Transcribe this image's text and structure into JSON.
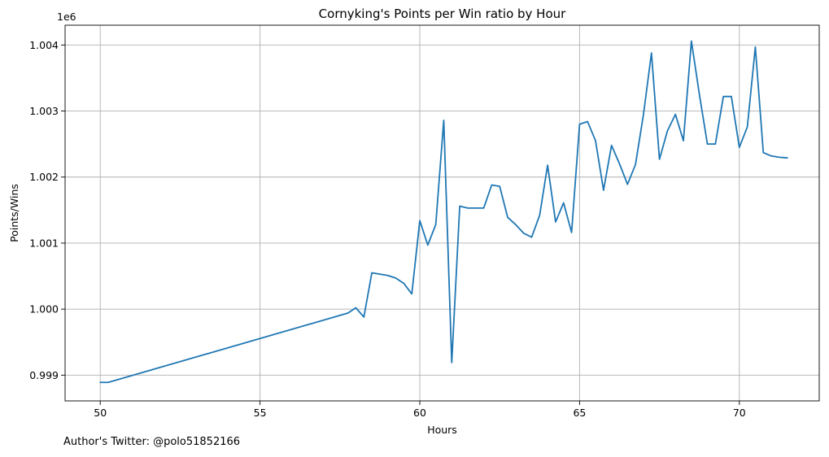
{
  "chart_data": {
    "type": "line",
    "title": "Cornyking's Points per Win ratio by Hour",
    "xlabel": "Hours",
    "ylabel": "Points/Wins",
    "offset_label": "1e6",
    "xlim": [
      48.9,
      72.5
    ],
    "ylim": [
      0.99861,
      1.0043
    ],
    "xticks": [
      50,
      55,
      60,
      65,
      70
    ],
    "xtick_labels": [
      "50",
      "55",
      "60",
      "65",
      "70"
    ],
    "yticks": [
      0.999,
      1.0,
      1.001,
      1.002,
      1.003,
      1.004
    ],
    "ytick_labels": [
      "0.999",
      "1.000",
      "1.001",
      "1.002",
      "1.003",
      "1.004"
    ],
    "grid": true,
    "color": "#1f77b4",
    "series": [
      {
        "x": [
          50.0,
          50.25,
          57.75,
          58.0,
          58.25,
          58.5,
          58.75,
          59.0,
          59.25,
          59.5,
          59.75,
          60.0,
          60.25,
          60.5,
          60.75,
          61.0,
          61.25,
          61.5,
          61.75,
          62.0,
          62.25,
          62.5,
          62.75,
          63.0,
          63.25,
          63.5,
          63.75,
          64.0,
          64.25,
          64.5,
          64.75,
          65.0,
          65.25,
          65.5,
          65.75,
          66.0,
          66.25,
          66.5,
          66.75,
          67.0,
          67.25,
          67.5,
          67.75,
          68.0,
          68.25,
          68.5,
          68.75,
          69.0,
          69.25,
          69.5,
          69.75,
          70.0,
          70.25,
          70.5,
          70.75,
          71.0,
          71.25,
          71.5
        ],
        "y": [
          0.99889,
          0.99889,
          0.99994,
          1.00002,
          0.99988,
          1.00055,
          1.00053,
          1.00051,
          1.00047,
          1.00039,
          1.00023,
          1.00134,
          1.00097,
          1.00128,
          1.00286,
          0.99919,
          1.00156,
          1.00153,
          1.00153,
          1.00153,
          1.00188,
          1.00186,
          1.00139,
          1.00128,
          1.00115,
          1.00109,
          1.00142,
          1.00218,
          1.00132,
          1.00161,
          1.00116,
          1.0028,
          1.00284,
          1.00255,
          1.0018,
          1.00248,
          1.0022,
          1.00189,
          1.00219,
          1.00295,
          1.00388,
          1.00227,
          1.0027,
          1.00295,
          1.00255,
          1.00406,
          1.00325,
          1.0025,
          1.0025,
          1.00322,
          1.00322,
          1.00245,
          1.00276,
          1.00397,
          1.00237,
          1.00232,
          1.0023,
          1.00229
        ]
      }
    ]
  },
  "footnote": "Author's Twitter: @polo51852166"
}
